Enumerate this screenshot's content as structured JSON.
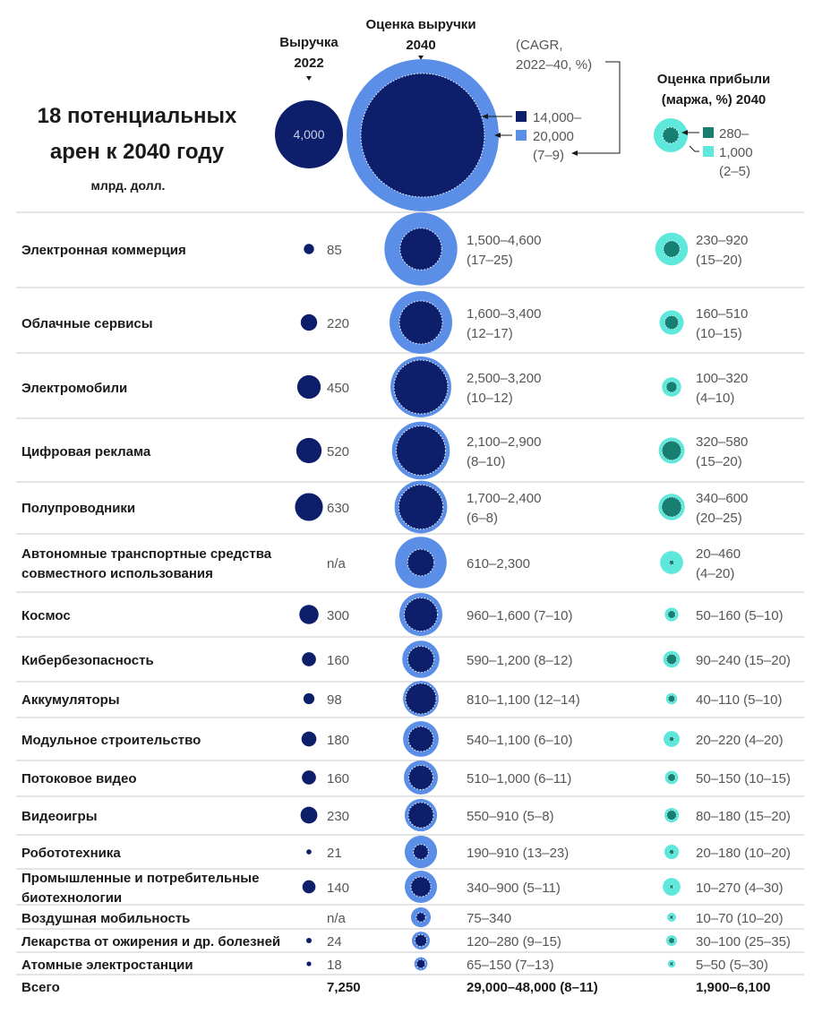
{
  "colors": {
    "revenue_2022": "#0d1f6b",
    "revenue_2040_low": "#0d1f6b",
    "revenue_2040_high": "#5b8ee6",
    "profit_low": "#177f72",
    "profit_high": "#5ee8dc",
    "divider": "#c8c8c8",
    "text": "#1a1a1a",
    "muted": "#555555"
  },
  "header": {
    "title_line1": "18 потенциальных",
    "title_line2": "арен к 2040 году",
    "units": "млрд. долл.",
    "col_revenue_2022_line1": "Выручка",
    "col_revenue_2022_line2": "2022",
    "col_revenue_2040_line1": "Оценка выручки",
    "col_revenue_2040_line2": "2040",
    "col_profit_line1": "Оценка прибыли",
    "col_profit_line2": "(маржа, %) 2040",
    "cagr_note_line1": "(CAGR,",
    "cagr_note_line2": "2022–40, %)"
  },
  "legend": {
    "revenue_2022_value": "4,000",
    "revenue_2040_low": "14,000–",
    "revenue_2040_high": "20,000",
    "revenue_2040_cagr": "(7–9)",
    "profit_low": "280–",
    "profit_high": "1,000",
    "profit_margin": "(2–5)"
  },
  "chart_data": {
    "type": "table",
    "rows": [
      {
        "name": "Электронная коммерция",
        "rev2022": "85",
        "rev2040_low": 1500,
        "rev2040_high": 4600,
        "rev2040": "1,500–4,600",
        "cagr": "(17–25)",
        "profit_low": 230,
        "profit_high": 920,
        "profit": "230–920",
        "margin": "(15–20)"
      },
      {
        "name": "Облачные сервисы",
        "rev2022": "220",
        "rev2040_low": 1600,
        "rev2040_high": 3400,
        "rev2040": "1,600–3,400",
        "cagr": "(12–17)",
        "profit_low": 160,
        "profit_high": 510,
        "profit": "160–510",
        "margin": "(10–15)"
      },
      {
        "name": "Электромобили",
        "rev2022": "450",
        "rev2040_low": 2500,
        "rev2040_high": 3200,
        "rev2040": "2,500–3,200",
        "cagr": "(10–12)",
        "profit_low": 100,
        "profit_high": 320,
        "profit": "100–320",
        "margin": "(4–10)"
      },
      {
        "name": "Цифровая реклама",
        "rev2022": "520",
        "rev2040_low": 2100,
        "rev2040_high": 2900,
        "rev2040": "2,100–2,900",
        "cagr": "(8–10)",
        "profit_low": 320,
        "profit_high": 580,
        "profit": "320–580",
        "margin": "(15–20)"
      },
      {
        "name": "Полупроводники",
        "rev2022": "630",
        "rev2040_low": 1700,
        "rev2040_high": 2400,
        "rev2040": "1,700–2,400",
        "cagr": "(6–8)",
        "profit_low": 340,
        "profit_high": 600,
        "profit": "340–600",
        "margin": "(20–25)"
      },
      {
        "name": "Автономные транспортные средства",
        "name2": "совместного использования",
        "rev2022": "n/a",
        "rev2040_low": 610,
        "rev2040_high": 2300,
        "rev2040": "610–2,300",
        "cagr": "",
        "profit_low": 20,
        "profit_high": 460,
        "profit": "20–460",
        "margin": "(4–20)"
      },
      {
        "name": "Космос",
        "rev2022": "300",
        "rev2040_low": 960,
        "rev2040_high": 1600,
        "rev2040": "960–1,600 (7–10)",
        "cagr": "",
        "profit_low": 50,
        "profit_high": 160,
        "profit": "50–160 (5–10)",
        "margin": ""
      },
      {
        "name": "Кибербезопасность",
        "rev2022": "160",
        "rev2040_low": 590,
        "rev2040_high": 1200,
        "rev2040": "590–1,200 (8–12)",
        "cagr": "",
        "profit_low": 90,
        "profit_high": 240,
        "profit": "90–240 (15–20)",
        "margin": ""
      },
      {
        "name": "Аккумуляторы",
        "rev2022": "98",
        "rev2040_low": 810,
        "rev2040_high": 1100,
        "rev2040": "810–1,100 (12–14)",
        "cagr": "",
        "profit_low": 40,
        "profit_high": 110,
        "profit": "40–110 (5–10)",
        "margin": ""
      },
      {
        "name": "Модульное строительство",
        "rev2022": "180",
        "rev2040_low": 540,
        "rev2040_high": 1100,
        "rev2040": "540–1,100 (6–10)",
        "cagr": "",
        "profit_low": 20,
        "profit_high": 220,
        "profit": "20–220 (4–20)",
        "margin": ""
      },
      {
        "name": "Потоковое видео",
        "rev2022": "160",
        "rev2040_low": 510,
        "rev2040_high": 1000,
        "rev2040": "510–1,000 (6–11)",
        "cagr": "",
        "profit_low": 50,
        "profit_high": 150,
        "profit": "50–150 (10–15)",
        "margin": ""
      },
      {
        "name": "Видеоигры",
        "rev2022": "230",
        "rev2040_low": 550,
        "rev2040_high": 910,
        "rev2040": "550–910 (5–8)",
        "cagr": "",
        "profit_low": 80,
        "profit_high": 180,
        "profit": "80–180 (15–20)",
        "margin": ""
      },
      {
        "name": "Робототехника",
        "rev2022": "21",
        "rev2040_low": 190,
        "rev2040_high": 910,
        "rev2040": "190–910 (13–23)",
        "cagr": "",
        "profit_low": 20,
        "profit_high": 180,
        "profit": "20–180 (10–20)",
        "margin": ""
      },
      {
        "name": "Промышленные и потребительные",
        "name2": "биотехнологии",
        "rev2022": "140",
        "rev2040_low": 340,
        "rev2040_high": 900,
        "rev2040": "340–900 (5–11)",
        "cagr": "",
        "profit_low": 10,
        "profit_high": 270,
        "profit": "10–270 (4–30)",
        "margin": ""
      },
      {
        "name": "Воздушная мобильность",
        "rev2022": "n/a",
        "rev2040_low": 75,
        "rev2040_high": 340,
        "rev2040": "75–340",
        "cagr": "",
        "profit_low": 10,
        "profit_high": 70,
        "profit": "10–70 (10–20)",
        "margin": ""
      },
      {
        "name": "Лекарства от ожирения и др. болезней",
        "rev2022": "24",
        "rev2040_low": 120,
        "rev2040_high": 280,
        "rev2040": "120–280 (9–15)",
        "cagr": "",
        "profit_low": 30,
        "profit_high": 100,
        "profit": "30–100 (25–35)",
        "margin": ""
      },
      {
        "name": "Атомные электростанции",
        "rev2022": "18",
        "rev2040_low": 65,
        "rev2040_high": 150,
        "rev2040": "65–150 (7–13)",
        "cagr": "",
        "profit_low": 5,
        "profit_high": 50,
        "profit": "5–50 (5–30)",
        "margin": ""
      }
    ],
    "total": {
      "name": "Всего",
      "rev2022": "7,250",
      "rev2040": "29,000–48,000 (8–11)",
      "profit": "1,900–6,100"
    }
  }
}
